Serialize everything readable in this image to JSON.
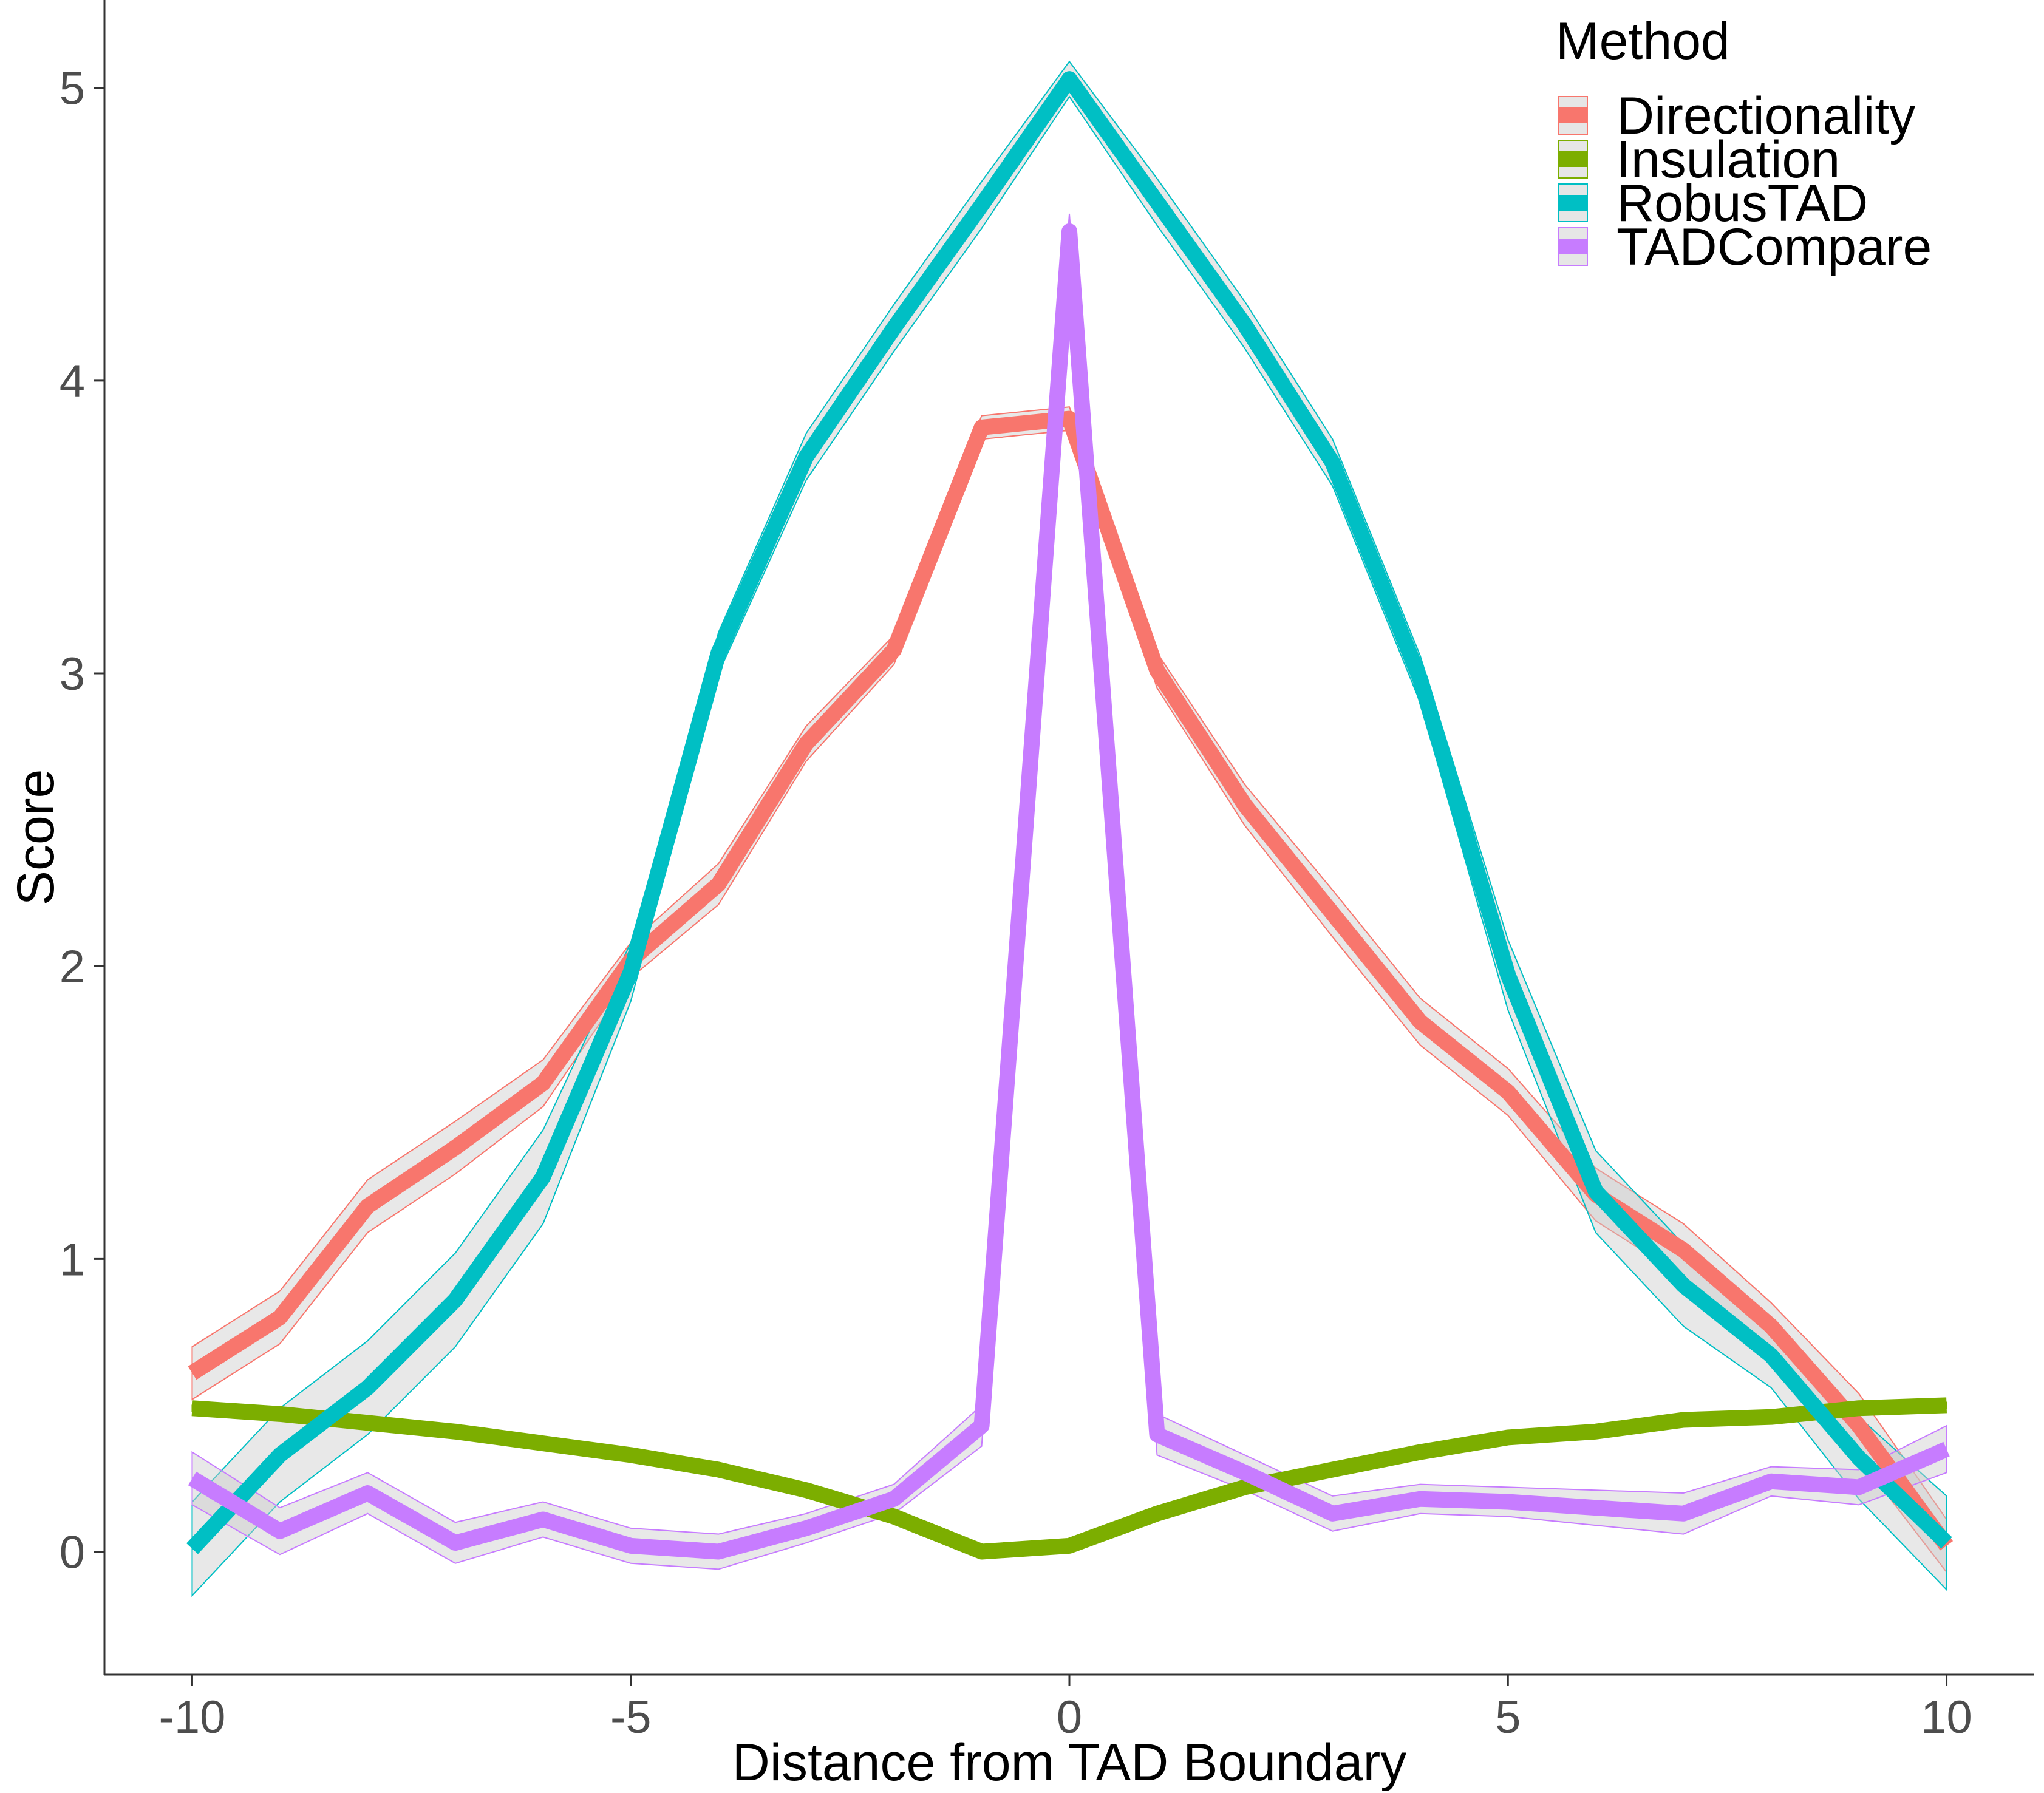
{
  "chart_data": {
    "type": "line",
    "xlabel": "Distance from TAD Boundary",
    "ylabel": "Score",
    "xlim": [
      -11,
      11
    ],
    "ylim": [
      -0.42,
      5.3
    ],
    "x_ticks": [
      -10,
      -5,
      0,
      5,
      10
    ],
    "x_tick_labels": [
      "-10",
      "-5",
      "0",
      "5",
      "10"
    ],
    "y_ticks": [
      0,
      1,
      2,
      3,
      4,
      5
    ],
    "y_tick_labels": [
      "0",
      "1",
      "2",
      "3",
      "4",
      "5"
    ],
    "grid": false,
    "legend": {
      "title": "Method",
      "position": "top-right"
    },
    "x": [
      -10,
      -9,
      -8,
      -7,
      -6,
      -5,
      -4,
      -3,
      -2,
      -1,
      0,
      1,
      2,
      3,
      4,
      5,
      6,
      7,
      8,
      9,
      10
    ],
    "series": [
      {
        "name": "Directionality",
        "color": "#F8766D",
        "values": [
          0.61,
          0.8,
          1.18,
          1.38,
          1.6,
          2.02,
          2.28,
          2.76,
          3.08,
          3.84,
          3.87,
          3.01,
          2.55,
          2.18,
          1.81,
          1.57,
          1.22,
          1.03,
          0.77,
          0.43,
          0.02
        ],
        "ci_low": [
          0.52,
          0.71,
          1.09,
          1.29,
          1.52,
          1.96,
          2.21,
          2.7,
          3.03,
          3.8,
          3.83,
          2.95,
          2.48,
          2.1,
          1.73,
          1.49,
          1.13,
          0.94,
          0.7,
          0.32,
          -0.07
        ],
        "ci_high": [
          0.7,
          0.89,
          1.27,
          1.47,
          1.68,
          2.08,
          2.35,
          2.82,
          3.13,
          3.88,
          3.91,
          3.07,
          2.62,
          2.26,
          1.89,
          1.65,
          1.31,
          1.12,
          0.85,
          0.54,
          0.11
        ]
      },
      {
        "name": "Insulation",
        "color": "#7CAE00",
        "values": [
          0.49,
          0.47,
          0.44,
          0.41,
          0.37,
          0.33,
          0.28,
          0.21,
          0.12,
          0.0,
          0.02,
          0.13,
          0.22,
          0.28,
          0.34,
          0.39,
          0.41,
          0.45,
          0.46,
          0.49,
          0.5
        ],
        "ci_low": [
          0.48,
          0.46,
          0.43,
          0.4,
          0.36,
          0.32,
          0.27,
          0.2,
          0.11,
          -0.01,
          0.01,
          0.12,
          0.21,
          0.27,
          0.33,
          0.38,
          0.4,
          0.44,
          0.45,
          0.48,
          0.49
        ],
        "ci_high": [
          0.5,
          0.48,
          0.45,
          0.42,
          0.38,
          0.34,
          0.29,
          0.22,
          0.13,
          0.01,
          0.03,
          0.14,
          0.23,
          0.29,
          0.35,
          0.4,
          0.42,
          0.46,
          0.47,
          0.5,
          0.51
        ]
      },
      {
        "name": "RobusTAD",
        "color": "#00BFC4",
        "values": [
          0.01,
          0.33,
          0.56,
          0.86,
          1.28,
          1.98,
          3.07,
          3.74,
          4.18,
          4.6,
          5.03,
          4.61,
          4.19,
          3.72,
          2.98,
          1.97,
          1.23,
          0.91,
          0.67,
          0.32,
          0.03
        ],
        "ci_low": [
          -0.15,
          0.17,
          0.4,
          0.7,
          1.12,
          1.88,
          3.0,
          3.66,
          4.1,
          4.52,
          4.97,
          4.53,
          4.11,
          3.64,
          2.9,
          1.85,
          1.09,
          0.77,
          0.56,
          0.18,
          -0.13
        ],
        "ci_high": [
          0.17,
          0.49,
          0.72,
          1.02,
          1.44,
          2.08,
          3.14,
          3.82,
          4.26,
          4.68,
          5.09,
          4.69,
          4.27,
          3.8,
          3.06,
          2.09,
          1.37,
          1.05,
          0.78,
          0.46,
          0.19
        ]
      },
      {
        "name": "TADCompare",
        "color": "#C77CFF",
        "values": [
          0.25,
          0.07,
          0.2,
          0.03,
          0.11,
          0.02,
          0.0,
          0.08,
          0.18,
          0.43,
          4.51,
          0.4,
          0.27,
          0.13,
          0.18,
          0.17,
          0.15,
          0.13,
          0.24,
          0.22,
          0.35
        ],
        "ci_low": [
          0.16,
          -0.01,
          0.13,
          -0.04,
          0.05,
          -0.04,
          -0.06,
          0.03,
          0.13,
          0.36,
          4.45,
          0.33,
          0.21,
          0.07,
          0.13,
          0.12,
          0.09,
          0.06,
          0.19,
          0.16,
          0.27
        ],
        "ci_high": [
          0.34,
          0.15,
          0.27,
          0.1,
          0.17,
          0.08,
          0.06,
          0.13,
          0.23,
          0.5,
          4.57,
          0.47,
          0.33,
          0.19,
          0.23,
          0.22,
          0.21,
          0.2,
          0.29,
          0.28,
          0.43
        ]
      }
    ]
  }
}
